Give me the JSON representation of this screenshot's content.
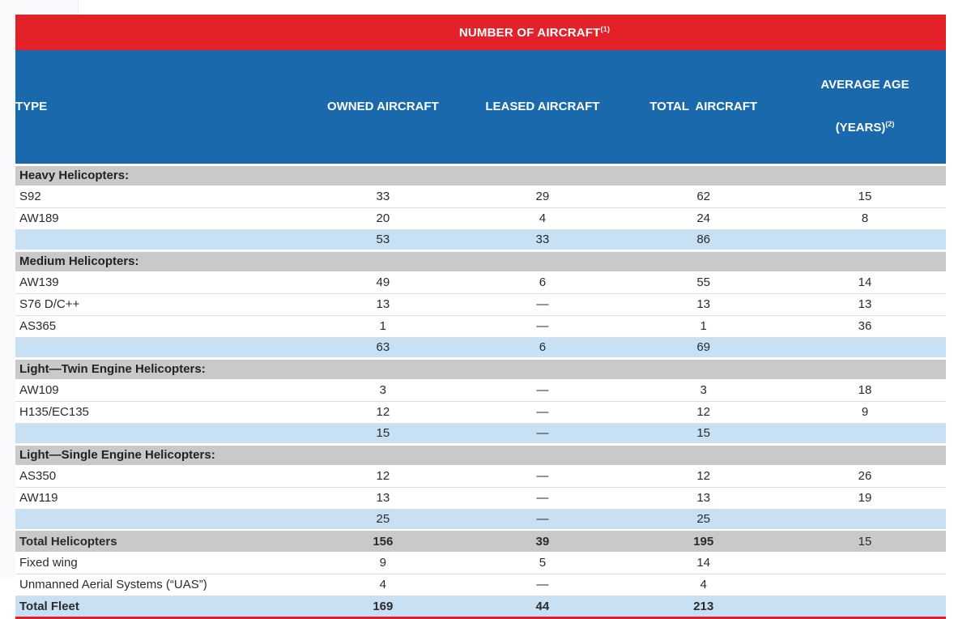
{
  "page": {
    "left_strip_color": "#f8f9fa"
  },
  "table": {
    "title": {
      "text": "NUMBER OF AIRCRAFT",
      "sup": "(1)"
    },
    "colors": {
      "title_band": "#e32128",
      "header_band": "#1a69ac",
      "section_band": "#c9c9c9",
      "subtotal_band": "#c8e0f4",
      "total_fleet_underline": "#dd2029",
      "text": "#2b2b2b"
    },
    "columns": [
      {
        "label": "TYPE"
      },
      {
        "label": "OWNED AIRCRAFT"
      },
      {
        "label": "LEASED AIRCRAFT"
      },
      {
        "label": "TOTAL  AIRCRAFT"
      },
      {
        "label_line1": "AVERAGE AGE",
        "label_line2": "(YEARS)",
        "sup": "(2)"
      }
    ],
    "rows": [
      {
        "type": "section",
        "label": "Heavy Helicopters:"
      },
      {
        "type": "data",
        "label": "S92",
        "owned": "33",
        "leased": "29",
        "total": "62",
        "avg": "15"
      },
      {
        "type": "data",
        "label": "AW189",
        "owned": "20",
        "leased": "4",
        "total": "24",
        "avg": "8"
      },
      {
        "type": "subtotal",
        "label": "",
        "owned": "53",
        "leased": "33",
        "total": "86",
        "avg": ""
      },
      {
        "type": "section",
        "label": "Medium Helicopters:"
      },
      {
        "type": "data",
        "label": "AW139",
        "owned": "49",
        "leased": "6",
        "total": "55",
        "avg": "14"
      },
      {
        "type": "data",
        "label": "S76 D/C++",
        "owned": "13",
        "leased": "—",
        "total": "13",
        "avg": "13"
      },
      {
        "type": "data",
        "label": "AS365",
        "owned": "1",
        "leased": "—",
        "total": "1",
        "avg": "36"
      },
      {
        "type": "subtotal",
        "label": "",
        "owned": "63",
        "leased": "6",
        "total": "69",
        "avg": ""
      },
      {
        "type": "section",
        "label": "Light—Twin Engine Helicopters:"
      },
      {
        "type": "data",
        "label": "AW109",
        "owned": "3",
        "leased": "—",
        "total": "3",
        "avg": "18"
      },
      {
        "type": "data",
        "label": "H135/EC135",
        "owned": "12",
        "leased": "—",
        "total": "12",
        "avg": "9"
      },
      {
        "type": "subtotal",
        "label": "",
        "owned": "15",
        "leased": "—",
        "total": "15",
        "avg": ""
      },
      {
        "type": "section",
        "label": "Light—Single Engine Helicopters:"
      },
      {
        "type": "data",
        "label": "AS350",
        "owned": "12",
        "leased": "—",
        "total": "12",
        "avg": "26"
      },
      {
        "type": "data",
        "label": "AW119",
        "owned": "13",
        "leased": "—",
        "total": "13",
        "avg": "19"
      },
      {
        "type": "subtotal",
        "label": "",
        "owned": "25",
        "leased": "—",
        "total": "25",
        "avg": ""
      },
      {
        "type": "total_gray",
        "label": "Total Helicopters",
        "owned": "156",
        "leased": "39",
        "total": "195",
        "avg": "15"
      },
      {
        "type": "data",
        "label": "Fixed wing",
        "owned": "9",
        "leased": "5",
        "total": "14",
        "avg": ""
      },
      {
        "type": "data",
        "label": "Unmanned Aerial Systems (“UAS”)",
        "owned": "4",
        "leased": "—",
        "total": "4",
        "avg": ""
      },
      {
        "type": "total_fleet",
        "label": "Total Fleet",
        "owned": "169",
        "leased": "44",
        "total": "213",
        "avg": ""
      }
    ]
  }
}
